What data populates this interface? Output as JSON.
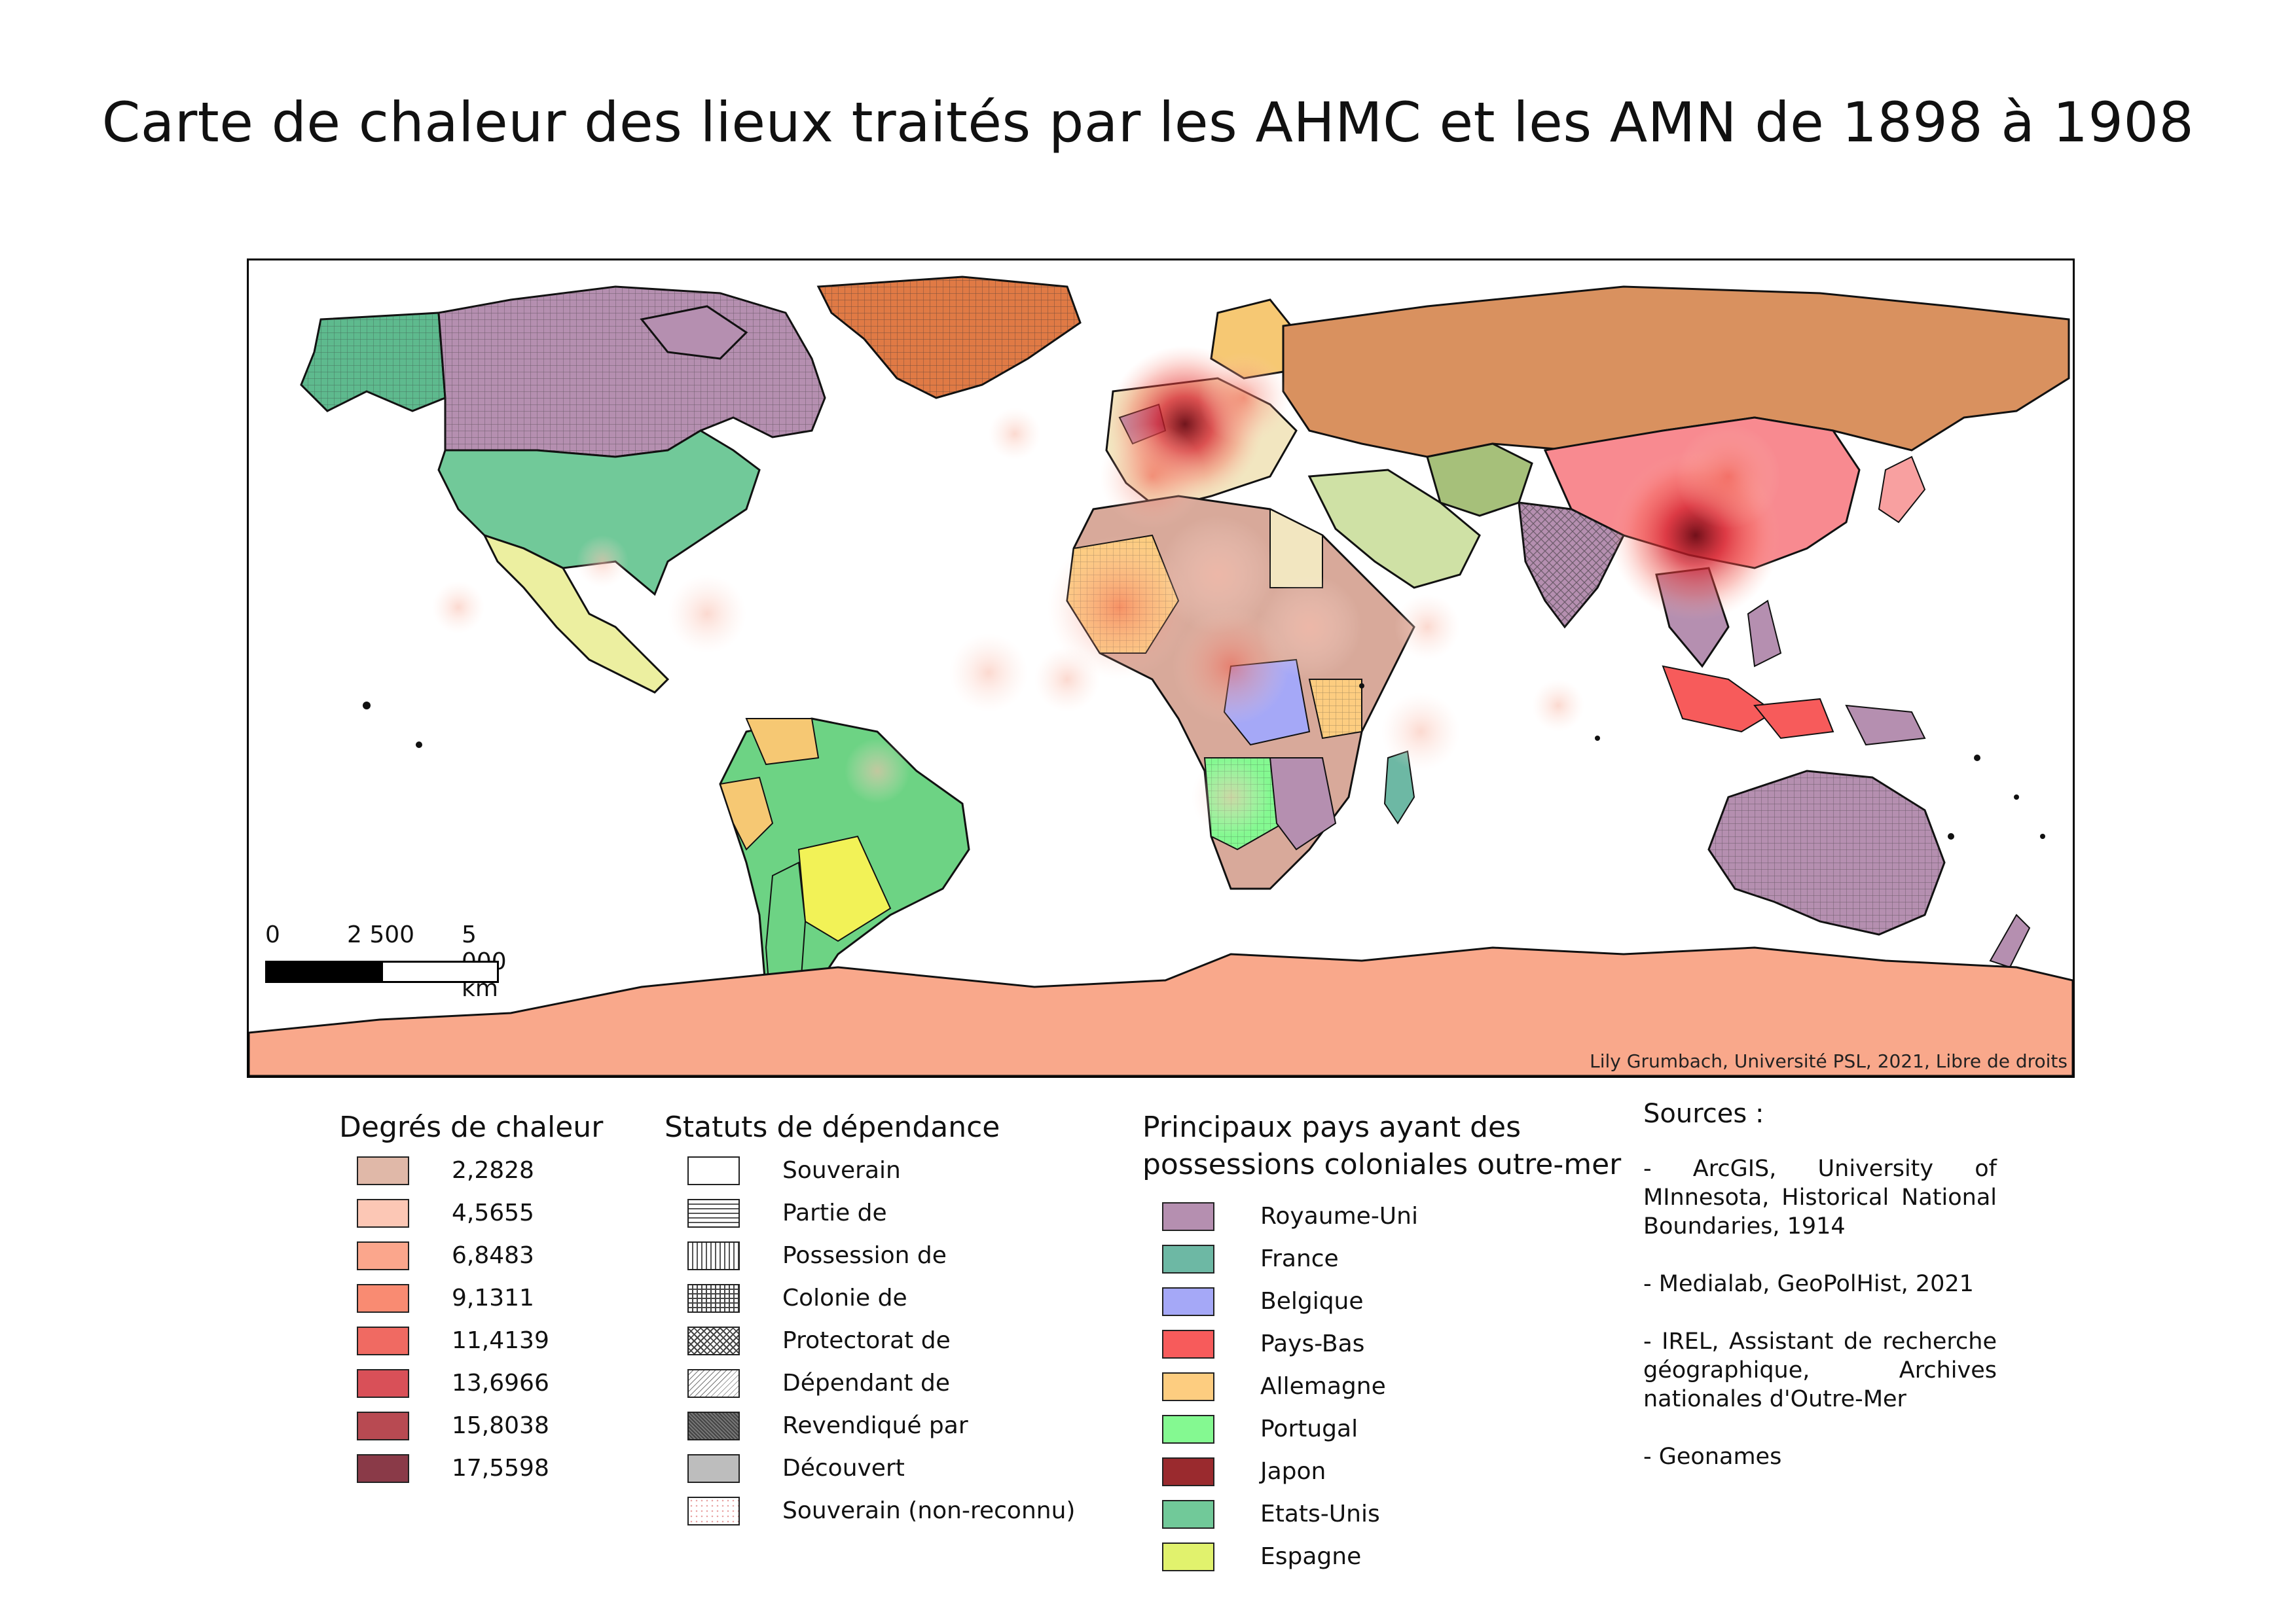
{
  "title": "Carte de chaleur des lieux traités par les AHMC et les AMN de 1898 à 1908",
  "attribution": "Lily Grumbach, Université PSL, 2021, Libre de droits",
  "scale": {
    "labels": [
      "0",
      "2 500",
      "5 000 km"
    ]
  },
  "heat_legend": {
    "title": "Degrés de chaleur",
    "items": [
      {
        "label": "2,2828",
        "color": "#e0b8a8"
      },
      {
        "label": "4,5655",
        "color": "#fcc7b5"
      },
      {
        "label": "6,8483",
        "color": "#fba68c"
      },
      {
        "label": "9,1311",
        "color": "#f98b72"
      },
      {
        "label": "11,4139",
        "color": "#f06a62"
      },
      {
        "label": "13,6966",
        "color": "#d95058"
      },
      {
        "label": "15,8038",
        "color": "#b84a52"
      },
      {
        "label": "17,5598",
        "color": "#8a3a48"
      }
    ]
  },
  "status_legend": {
    "title": "Statuts de dépendance",
    "items": [
      {
        "label": "Souverain",
        "pattern": "solid-white"
      },
      {
        "label": "Partie de",
        "pattern": "horizontal-lines"
      },
      {
        "label": "Possession de",
        "pattern": "vertical-lines"
      },
      {
        "label": "Colonie de",
        "pattern": "grid"
      },
      {
        "label": "Protectorat de",
        "pattern": "cross-hatch"
      },
      {
        "label": "Dépendant de",
        "pattern": "diagonal-lines"
      },
      {
        "label": "Revendiqué par",
        "pattern": "dense-dark"
      },
      {
        "label": "Découvert",
        "pattern": "solid-grey"
      },
      {
        "label": "Souverain (non-reconnu)",
        "pattern": "dots"
      }
    ]
  },
  "colonial_legend": {
    "title_line1": "Principaux pays ayant des",
    "title_line2": "possessions coloniales outre-mer",
    "items": [
      {
        "label": "Royaume-Uni",
        "color": "#b58fb0"
      },
      {
        "label": "France",
        "color": "#6db8a4"
      },
      {
        "label": "Belgique",
        "color": "#a5a8f7"
      },
      {
        "label": "Pays-Bas",
        "color": "#f75b5b"
      },
      {
        "label": "Allemagne",
        "color": "#fdcd80"
      },
      {
        "label": "Portugal",
        "color": "#84f991"
      },
      {
        "label": "Japon",
        "color": "#9a2a2e"
      },
      {
        "label": "Etats-Unis",
        "color": "#71c999"
      },
      {
        "label": "Espagne",
        "color": "#e1f26d"
      }
    ]
  },
  "sources": {
    "title": "Sources :",
    "items": [
      "- ArcGIS, University of MInnesota, Historical National Boundaries, 1914",
      "- Medialab, GeoPolHist, 2021",
      "- IREL, Assistant de recherche géographique, Archives nationales d'Outre-Mer",
      "- Geonames"
    ]
  },
  "map_colors": {
    "russia": "#d9915f",
    "china": "#f88a90",
    "antarctica": "#f9a88b",
    "greenland": "#e07a45",
    "neutral_country": "#fbfbf3"
  }
}
